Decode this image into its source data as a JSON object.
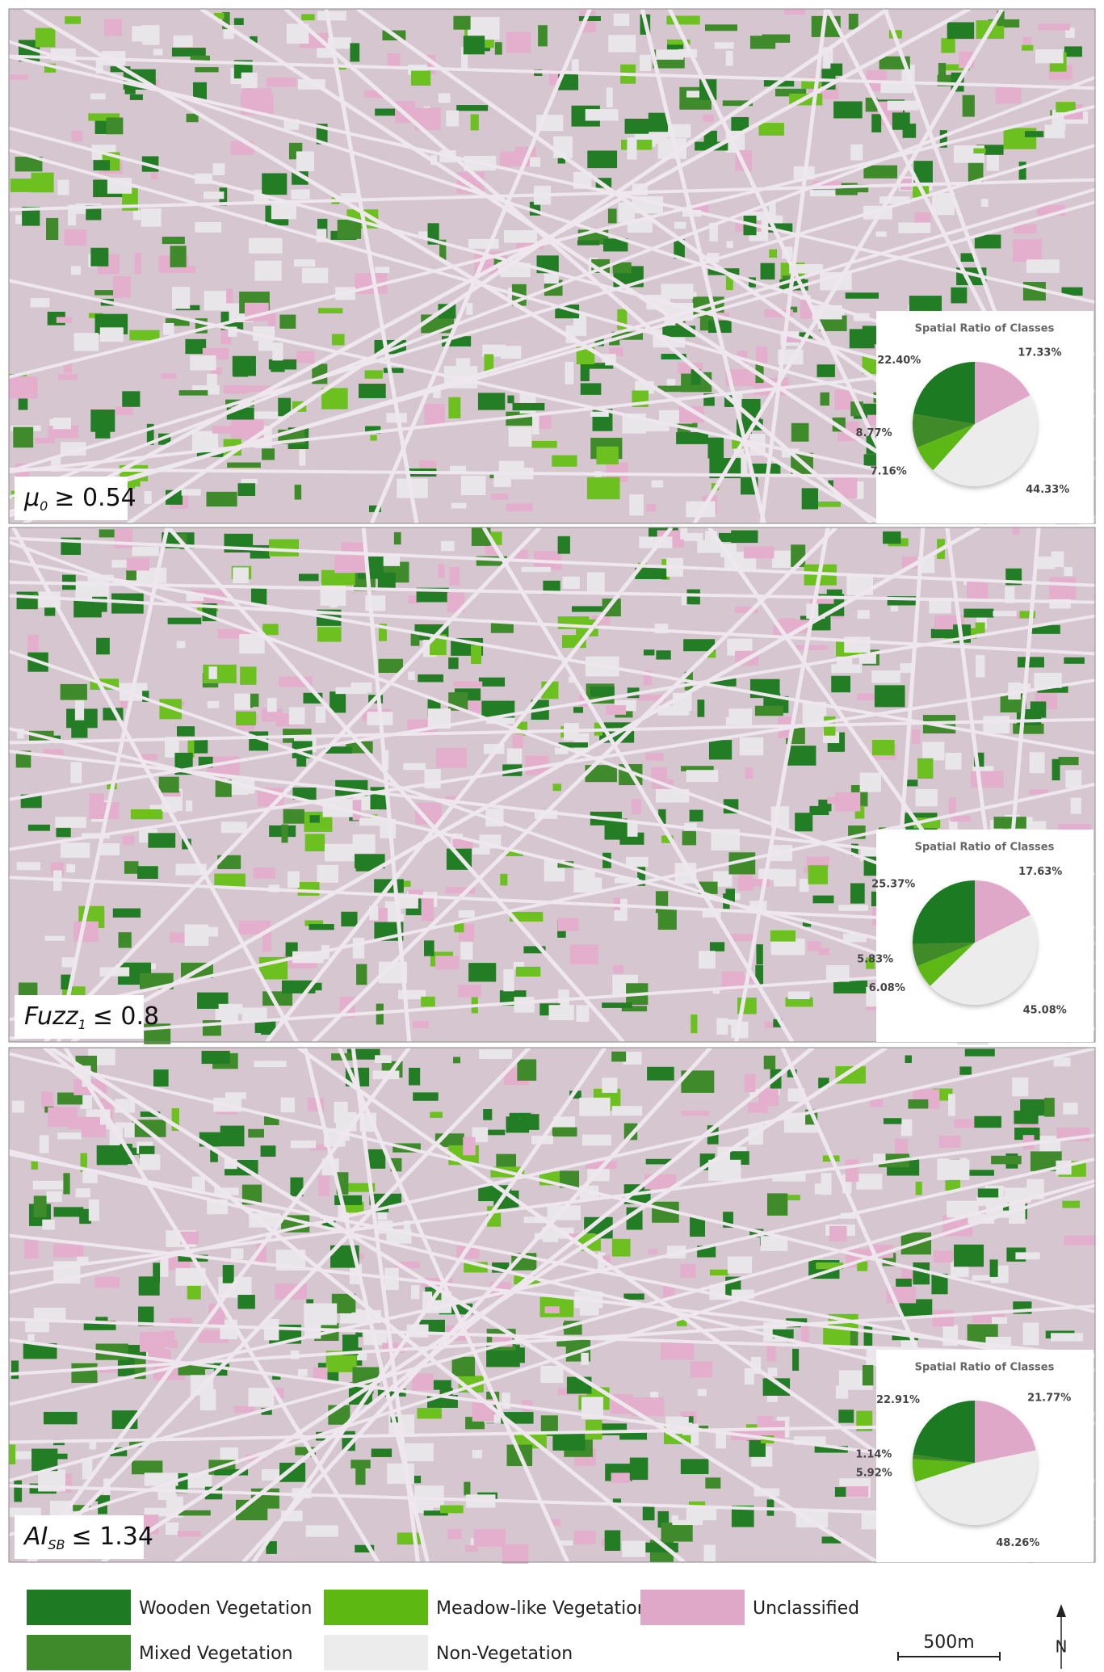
{
  "panels": [
    {
      "symbol": "μ",
      "subscript": "0",
      "condition": "≥ 0.54"
    },
    {
      "symbol": "Fuzz",
      "subscript": "1",
      "condition": "≤ 0.8"
    },
    {
      "symbol": "AI",
      "subscript": "SB",
      "condition": "≤ 1.34"
    }
  ],
  "legend": [
    {
      "name": "Wooden Vegetation",
      "color": "#1f7a24"
    },
    {
      "name": "Mixed Vegetation",
      "color": "#3f8a2a"
    },
    {
      "name": "Meadow-like Vegetation",
      "color": "#5db812"
    },
    {
      "name": "Non-Vegetation",
      "color": "#ececec"
    },
    {
      "name": "Unclassified",
      "color": "#dfa8c8"
    }
  ],
  "scale_bar": "500m",
  "north": "N",
  "chart_data": [
    {
      "type": "pie",
      "title": "Spatial Ratio of Classes",
      "values": [
        22.4,
        8.77,
        7.16,
        44.33,
        17.33
      ],
      "value_labels": [
        "22.40%",
        "8.77%",
        "7.16%",
        "44.33%",
        "17.33%"
      ]
    },
    {
      "type": "pie",
      "title": "Spatial Ratio of Classes",
      "values": [
        25.37,
        5.83,
        6.08,
        45.08,
        17.63
      ],
      "value_labels": [
        "25.37%",
        "5.83%",
        "6.08%",
        "45.08%",
        "17.63%"
      ]
    },
    {
      "type": "pie",
      "title": "Spatial Ratio of Classes",
      "values": [
        22.91,
        1.14,
        5.92,
        48.26,
        21.77
      ],
      "value_labels": [
        "22.91%",
        "1.14%",
        "5.92%",
        "48.26%",
        "21.77%"
      ]
    }
  ]
}
